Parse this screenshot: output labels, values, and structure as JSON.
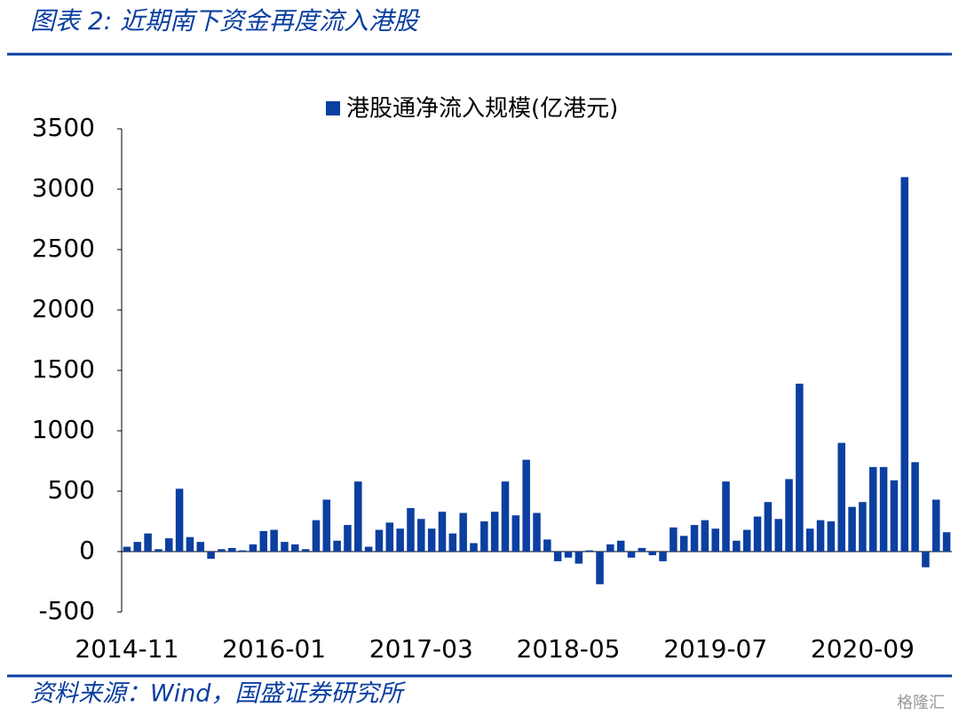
{
  "header": {
    "title": "图表 2:  近期南下资金再度流入港股"
  },
  "chart_data": {
    "type": "bar",
    "categories": [
      "2014-11",
      null,
      null,
      null,
      null,
      null,
      null,
      null,
      null,
      null,
      null,
      null,
      null,
      null,
      "2016-01",
      null,
      null,
      null,
      null,
      null,
      null,
      null,
      null,
      null,
      null,
      null,
      null,
      null,
      "2017-03",
      null,
      null,
      null,
      null,
      null,
      null,
      null,
      null,
      null,
      null,
      null,
      null,
      null,
      "2018-05",
      null,
      null,
      null,
      null,
      null,
      null,
      null,
      null,
      null,
      null,
      null,
      null,
      null,
      "2019-07",
      null,
      null,
      null,
      null,
      null,
      null,
      null,
      null,
      null,
      null,
      null,
      null,
      null,
      "2020-09",
      null,
      null,
      null,
      null,
      null,
      null,
      null,
      null
    ],
    "series": [
      {
        "name": "港股通净流入规模(亿港元)",
        "color": "#0b3fa0",
        "values": [
          40,
          80,
          150,
          20,
          110,
          520,
          120,
          80,
          -60,
          20,
          30,
          10,
          60,
          170,
          180,
          80,
          60,
          20,
          260,
          430,
          90,
          220,
          580,
          40,
          180,
          240,
          190,
          360,
          270,
          190,
          330,
          150,
          320,
          70,
          250,
          330,
          580,
          300,
          760,
          320,
          100,
          -80,
          -50,
          -100,
          10,
          -270,
          60,
          90,
          -50,
          30,
          -30,
          -80,
          200,
          130,
          220,
          260,
          190,
          580,
          90,
          180,
          290,
          410,
          270,
          600,
          1390,
          190,
          260,
          250,
          900,
          370,
          410,
          700,
          700,
          590,
          3100,
          740,
          -130,
          430,
          160
        ]
      }
    ],
    "ylim": [
      -500,
      3500
    ],
    "yticks": [
      -500,
      0,
      500,
      1000,
      1500,
      2000,
      2500,
      3000,
      3500
    ],
    "legend": "top"
  },
  "footer": {
    "source": "资料来源：Wind，国盛证券研究所",
    "watermark": "格隆汇"
  }
}
